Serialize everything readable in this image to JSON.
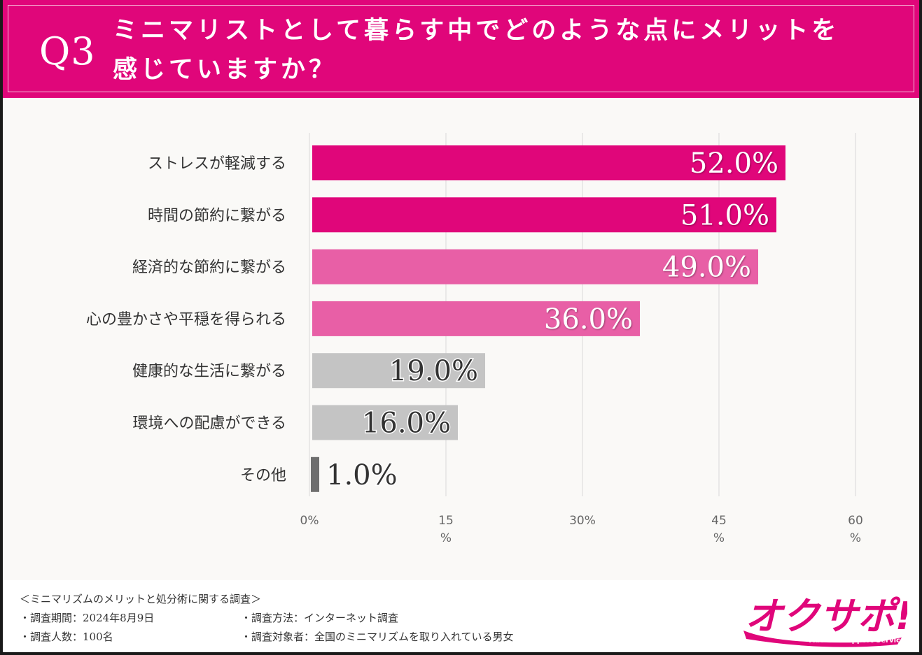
{
  "header": {
    "q_number": "Q3",
    "title_line1": "ミニマリストとして暮らす中でどのような点にメリットを",
    "title_line2": "感じていますか？"
  },
  "chart_data": {
    "type": "bar",
    "orientation": "horizontal",
    "categories": [
      "ストレスが軽減する",
      "時間の節約に繋がる",
      "経済的な節約に繋がる",
      "心の豊かさや平穏を得られる",
      "健康的な生活に繋がる",
      "環境への配慮ができる",
      "その他"
    ],
    "values": [
      52.0,
      51.0,
      49.0,
      36.0,
      19.0,
      16.0,
      1.0
    ],
    "value_labels": [
      "52.0%",
      "51.0%",
      "49.0%",
      "36.0%",
      "19.0%",
      "16.0%",
      "1.0%"
    ],
    "bar_colors": [
      "#e0067a",
      "#e0067a",
      "#e85fa6",
      "#e85fa6",
      "#c4c4c4",
      "#c4c4c4",
      "#6e6e6e"
    ],
    "xlim": [
      0,
      60
    ],
    "x_ticks": [
      {
        "value": 0,
        "label": "0%",
        "unit": ""
      },
      {
        "value": 15,
        "label": "15",
        "unit": "%"
      },
      {
        "value": 30,
        "label": "30%",
        "unit": ""
      },
      {
        "value": 45,
        "label": "45",
        "unit": "%"
      },
      {
        "value": 60,
        "label": "60",
        "unit": "%"
      }
    ],
    "grid": true
  },
  "footer": {
    "survey_title": "＜ミニマリズムのメリットと処分術に関する調査＞",
    "period": "・調査期間：2024年8月9日",
    "sample": "・調査人数：100名",
    "method": "・調査方法：インターネット調査",
    "target": "・調査対象者：全国のミニマリズムを取り入れている男女"
  },
  "logo": {
    "text": "オクサポ!",
    "subtitle": "Auction Support Service"
  },
  "colors": {
    "brand": "#e0067a",
    "light_pink": "#e85fa6",
    "gray": "#c4c4c4",
    "dark_gray": "#6e6e6e"
  }
}
